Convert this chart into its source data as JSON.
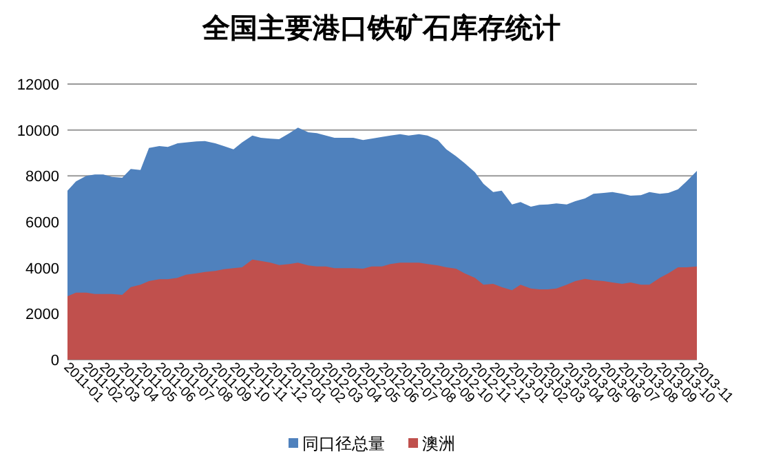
{
  "chart_data": {
    "type": "area",
    "title": "全国主要港口铁矿石库存统计",
    "x": [
      "2011-01-01",
      "2011-01-15",
      "2011-02-01",
      "2011-02-15",
      "2011-03-01",
      "2011-03-15",
      "2011-04-01",
      "2011-04-15",
      "2011-05-01",
      "2011-05-15",
      "2011-06-01",
      "2011-06-15",
      "2011-07-01",
      "2011-07-15",
      "2011-08-01",
      "2011-08-15",
      "2011-09-01",
      "2011-09-15",
      "2011-10-01",
      "2011-10-15",
      "2011-11-01",
      "2011-11-15",
      "2011-12-01",
      "2011-12-15",
      "2012-01-01",
      "2012-01-15",
      "2012-02-01",
      "2012-02-15",
      "2012-03-01",
      "2012-03-15",
      "2012-04-01",
      "2012-04-15",
      "2012-05-01",
      "2012-05-15",
      "2012-06-01",
      "2012-06-15",
      "2012-07-01",
      "2012-07-15",
      "2012-08-01",
      "2012-08-15",
      "2012-09-01",
      "2012-09-15",
      "2012-10-01",
      "2012-10-15",
      "2012-11-01",
      "2012-11-15",
      "2012-12-01",
      "2012-12-15",
      "2013-01-01",
      "2013-01-15",
      "2013-02-01",
      "2013-02-15",
      "2013-03-01",
      "2013-03-15",
      "2013-04-01",
      "2013-04-15",
      "2013-05-01",
      "2013-05-15",
      "2013-06-01",
      "2013-06-15",
      "2013-07-01",
      "2013-07-15",
      "2013-08-01",
      "2013-08-15",
      "2013-09-01",
      "2013-09-15",
      "2013-10-01",
      "2013-10-15",
      "2013-11-01"
    ],
    "series": [
      {
        "name": "同口径总量",
        "color": "#4f81bd",
        "values": [
          7360,
          7760,
          8000,
          8060,
          8060,
          7960,
          7920,
          8300,
          8260,
          9220,
          9300,
          9260,
          9420,
          9460,
          9500,
          9520,
          9420,
          9300,
          9160,
          9460,
          9760,
          9660,
          9620,
          9600,
          9860,
          10100,
          9900,
          9860,
          9760,
          9660,
          9660,
          9660,
          9560,
          9620,
          9700,
          9760,
          9820,
          9760,
          9820,
          9760,
          9560,
          9160,
          8860,
          8560,
          8160,
          7660,
          7300,
          7360,
          6760,
          6860,
          6660,
          6740,
          6760,
          6800,
          6760,
          6900,
          7020,
          7220,
          7260,
          7300,
          7220,
          7140,
          7160,
          7300,
          7220,
          7260,
          7420,
          7760,
          8220
        ]
      },
      {
        "name": "澳洲",
        "color": "#c0504d",
        "values": [
          2760,
          2920,
          2920,
          2860,
          2860,
          2860,
          2820,
          3160,
          3260,
          3420,
          3500,
          3500,
          3560,
          3700,
          3760,
          3820,
          3860,
          3940,
          3980,
          4020,
          4360,
          4300,
          4220,
          4120,
          4160,
          4220,
          4100,
          4060,
          4060,
          3980,
          3980,
          3980,
          3960,
          4060,
          4060,
          4160,
          4220,
          4220,
          4220,
          4160,
          4100,
          4020,
          3960,
          3760,
          3560,
          3260,
          3300,
          3160,
          3020,
          3260,
          3100,
          3060,
          3060,
          3100,
          3260,
          3420,
          3520,
          3460,
          3420,
          3360,
          3300,
          3360,
          3260,
          3260,
          3560,
          3760,
          4020,
          4020,
          4060
        ]
      }
    ],
    "xlim": [
      "2011-01-01",
      "2013-11-01"
    ],
    "xticks": [
      "2011-01",
      "2011-02",
      "2011-03",
      "2011-04",
      "2011-05",
      "2011-06",
      "2011-07",
      "2011-08",
      "2011-09",
      "2011-10",
      "2011-11",
      "2011-12",
      "2012-01",
      "2012-02",
      "2012-03",
      "2012-04",
      "2012-05",
      "2012-06",
      "2012-07",
      "2012-08",
      "2012-09",
      "2012-10",
      "2012-11",
      "2012-12",
      "2013-01",
      "2013-02",
      "2013-03",
      "2013-04",
      "2013-05",
      "2013-06",
      "2013-07",
      "2013-08",
      "2013-09",
      "2013-10",
      "2013-11"
    ],
    "ylim": [
      0,
      12000
    ],
    "yticks": [
      0,
      2000,
      4000,
      6000,
      8000,
      10000,
      12000
    ],
    "grid": "y",
    "legend": "bottom"
  }
}
